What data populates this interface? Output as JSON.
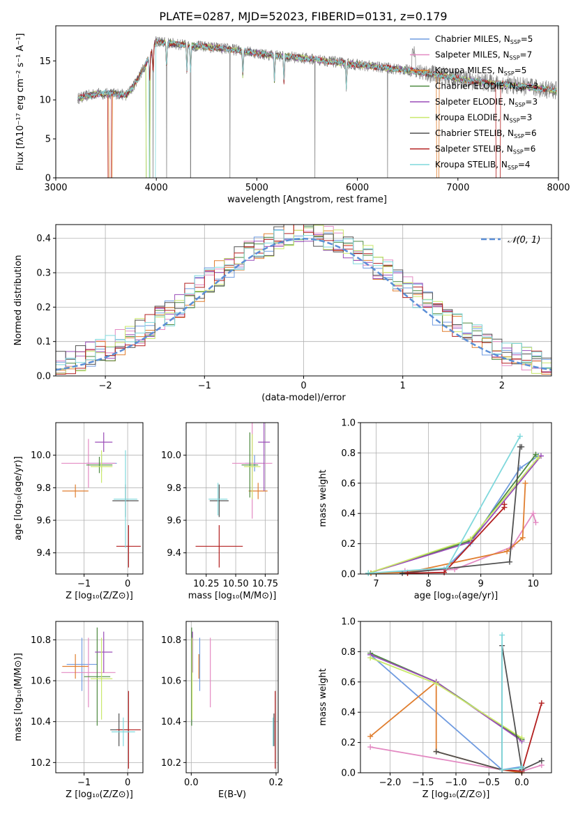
{
  "title": "PLATE=0287, MJD=52023, FIBERID=0131, z=0.179",
  "colors": {
    "chabrier_miles": "#6f9be0",
    "salpeter_miles": "#e389c2",
    "kroupa_miles": "#e07e2f",
    "chabrier_elodie": "#4d8a40",
    "salpeter_elodie": "#9a4cb8",
    "kroupa_elodie": "#c9e86a",
    "chabrier_stelib": "#505050",
    "salpeter_stelib": "#b31f1f",
    "kroupa_stelib": "#7fd8dc",
    "gaussian": "#5b8ed6",
    "observed_spectrum": "#808080",
    "grid": "#b0b0b0"
  },
  "legend_spectrum": [
    {
      "name": "Chabrier MILES, N_SSP=5",
      "text": "Chabrier MILES, N",
      "sub": "SSP",
      "suffix": "=5",
      "color_key": "chabrier_miles"
    },
    {
      "name": "Salpeter MILES, N_SSP=7",
      "text": "Salpeter MILES, N",
      "sub": "SSP",
      "suffix": "=7",
      "color_key": "salpeter_miles"
    },
    {
      "name": "Kroupa MILES, N_SSP=5",
      "text": "Kroupa MILES, N",
      "sub": "SSP",
      "suffix": "=5",
      "color_key": "kroupa_miles"
    },
    {
      "name": "Chabrier ELODIE, N_SSP=3",
      "text": "Chabrier ELODIE, N",
      "sub": "SSP",
      "suffix": "=3",
      "color_key": "chabrier_elodie"
    },
    {
      "name": "Salpeter ELODIE, N_SSP=3",
      "text": "Salpeter ELODIE, N",
      "sub": "SSP",
      "suffix": "=3",
      "color_key": "salpeter_elodie"
    },
    {
      "name": "Kroupa ELODIE, N_SSP=3",
      "text": "Kroupa ELODIE, N",
      "sub": "SSP",
      "suffix": "=3",
      "color_key": "kroupa_elodie"
    },
    {
      "name": "Chabrier STELIB, N_SSP=6",
      "text": "Chabrier STELIB, N",
      "sub": "SSP",
      "suffix": "=6",
      "color_key": "chabrier_stelib"
    },
    {
      "name": "Salpeter STELIB, N_SSP=6",
      "text": "Salpeter STELIB, N",
      "sub": "SSP",
      "suffix": "=6",
      "color_key": "salpeter_stelib"
    },
    {
      "name": "Kroupa STELIB, N_SSP=4",
      "text": "Kroupa STELIB, N",
      "sub": "SSP",
      "suffix": "=4",
      "color_key": "kroupa_stelib"
    }
  ],
  "chart_data": [
    {
      "id": "spectrum",
      "type": "line",
      "xlabel": "wavelength [Angstrom, rest frame]",
      "ylabel": "Flux [fλ10⁻¹⁷ erg cm⁻² s⁻¹ A⁻¹]",
      "xlim": [
        3000,
        8000
      ],
      "ylim": [
        0,
        19.5
      ],
      "xticks": [
        3000,
        4000,
        5000,
        6000,
        7000,
        8000
      ],
      "yticks": [
        0,
        5,
        10,
        15
      ],
      "grid": false,
      "legend": "right",
      "observed_range": [
        3220,
        7980
      ],
      "continuum_shape": {
        "x": [
          3220,
          3400,
          3600,
          3700,
          3760,
          3850,
          3950,
          4000,
          4100,
          4300,
          4500,
          4800,
          5100,
          5500,
          6000,
          6500,
          6800,
          7200,
          7600,
          7980
        ],
        "y": [
          10.2,
          10.8,
          10.8,
          10.6,
          11.5,
          13.5,
          16.0,
          17.5,
          17.3,
          17.0,
          16.8,
          16.4,
          15.8,
          15.3,
          14.5,
          13.8,
          13.2,
          12.3,
          11.8,
          11.2
        ]
      },
      "model_dropouts": [
        {
          "model": "salpeter_stelib",
          "x": [
            3520,
            3550
          ]
        },
        {
          "model": "kroupa_miles",
          "x": [
            3530,
            3560
          ]
        },
        {
          "model": "kroupa_elodie",
          "x": [
            3900,
            3935
          ]
        },
        {
          "model": "chabrier_elodie",
          "x": [
            3900,
            3935
          ]
        },
        {
          "model": "kroupa_stelib",
          "x": [
            3930,
            3990
          ]
        },
        {
          "model": "kroupa_miles",
          "x": [
            6790,
            6810
          ]
        },
        {
          "model": "salpeter_stelib",
          "x": [
            7380,
            7420
          ]
        }
      ]
    },
    {
      "id": "residuals",
      "type": "step",
      "xlabel": "(data-model)/error",
      "ylabel": "Normed distribution",
      "xlim": [
        -2.5,
        2.5
      ],
      "ylim": [
        0,
        0.44
      ],
      "xticks": [
        -2,
        -1,
        0,
        1,
        2
      ],
      "yticks": [
        0.0,
        0.1,
        0.2,
        0.3,
        0.4
      ],
      "grid": true,
      "legend": "top-right",
      "reference_curve": {
        "name": "N(0,1)",
        "label": "𝒩(0, 1)",
        "mean": 0,
        "sigma": 1
      },
      "bin_width": 0.1,
      "bin_range": [
        -2.5,
        2.5
      ]
    },
    {
      "id": "z_vs_age",
      "type": "scatter",
      "xlabel": "Z [log₁₀(Z/Z⊙)]",
      "ylabel": "age  [log₁₀(age/yr)]",
      "xlim": [
        -1.65,
        0.35
      ],
      "ylim": [
        9.27,
        10.2
      ],
      "xticks": [
        -1,
        0
      ],
      "yticks": [
        9.4,
        9.6,
        9.8,
        10.0
      ],
      "grid": true,
      "points": [
        {
          "model": "chabrier_miles",
          "x": -0.6,
          "xerr": 0.35,
          "y": 9.95,
          "yerr": 0.05
        },
        {
          "model": "salpeter_miles",
          "x": -0.9,
          "xerr": 0.62,
          "y": 9.95,
          "yerr": 0.15
        },
        {
          "model": "kroupa_miles",
          "x": -1.2,
          "xerr": 0.3,
          "y": 9.78,
          "yerr": 0.04
        },
        {
          "model": "chabrier_elodie",
          "x": -0.65,
          "xerr": 0.3,
          "y": 9.94,
          "yerr": 0.05
        },
        {
          "model": "salpeter_elodie",
          "x": -0.55,
          "xerr": 0.2,
          "y": 10.08,
          "yerr": 0.06
        },
        {
          "model": "kroupa_elodie",
          "x": -0.6,
          "xerr": 0.25,
          "y": 9.93,
          "yerr": 0.1
        },
        {
          "model": "chabrier_stelib",
          "x": -0.05,
          "xerr": 0.3,
          "y": 9.72,
          "yerr": 0.1
        },
        {
          "model": "salpeter_stelib",
          "x": 0.02,
          "xerr": 0.28,
          "y": 9.44,
          "yerr": 0.13
        },
        {
          "model": "kroupa_stelib",
          "x": -0.05,
          "xerr": 0.27,
          "y": 9.73,
          "yerr": 0.3
        }
      ]
    },
    {
      "id": "mass_vs_age",
      "type": "scatter",
      "xlabel": "mass [log₁₀(M/M⊙)]",
      "ylabel": "",
      "xlim": [
        10.08,
        10.86
      ],
      "ylim": [
        9.27,
        10.2
      ],
      "xticks": [
        10.25,
        10.5,
        10.75
      ],
      "yticks": [
        9.4,
        9.6,
        9.8,
        10.0
      ],
      "grid": true,
      "points": [
        {
          "model": "chabrier_miles",
          "x": 10.66,
          "xerr": 0.08,
          "y": 9.95,
          "yerr": 0.05
        },
        {
          "model": "salpeter_miles",
          "x": 10.64,
          "xerr": 0.17,
          "y": 9.95,
          "yerr": 0.34
        },
        {
          "model": "kroupa_miles",
          "x": 10.69,
          "xerr": 0.08,
          "y": 9.78,
          "yerr": 0.05
        },
        {
          "model": "chabrier_elodie",
          "x": 10.62,
          "xerr": 0.07,
          "y": 9.94,
          "yerr": 0.2
        },
        {
          "model": "salpeter_elodie",
          "x": 10.74,
          "xerr": 0.05,
          "y": 10.08,
          "yerr": 0.3
        },
        {
          "model": "kroupa_elodie",
          "x": 10.64,
          "xerr": 0.07,
          "y": 9.93,
          "yerr": 0.2
        },
        {
          "model": "chabrier_stelib",
          "x": 10.36,
          "xerr": 0.08,
          "y": 9.72,
          "yerr": 0.1
        },
        {
          "model": "salpeter_stelib",
          "x": 10.36,
          "xerr": 0.2,
          "y": 9.44,
          "yerr": 0.13
        },
        {
          "model": "kroupa_stelib",
          "x": 10.35,
          "xerr": 0.08,
          "y": 9.73,
          "yerr": 0.1
        }
      ]
    },
    {
      "id": "age_mass_weight",
      "type": "line",
      "xlabel": "age  [log₁₀(age/yr)]",
      "ylabel": "mass weight",
      "xlim": [
        6.7,
        10.35
      ],
      "ylim": [
        0,
        1.0
      ],
      "xticks": [
        7,
        8,
        9,
        10
      ],
      "yticks": [
        0.0,
        0.2,
        0.4,
        0.6,
        0.8,
        1.0
      ],
      "grid": true,
      "series": [
        {
          "model": "chabrier_miles",
          "x": [
            6.85,
            8.3,
            8.8,
            9.75,
            10.1
          ],
          "y": [
            0.005,
            0.03,
            0.2,
            0.7,
            0.78
          ]
        },
        {
          "model": "salpeter_miles",
          "x": [
            7.55,
            8.5,
            9.6,
            10.0,
            10.05
          ],
          "y": [
            0.02,
            0.03,
            0.18,
            0.4,
            0.34
          ]
        },
        {
          "model": "kroupa_miles",
          "x": [
            6.9,
            7.6,
            9.5,
            9.8,
            9.85
          ],
          "y": [
            0.005,
            0.01,
            0.15,
            0.24,
            0.6
          ]
        },
        {
          "model": "chabrier_elodie",
          "x": [
            6.85,
            8.8,
            10.05
          ],
          "y": [
            0.005,
            0.22,
            0.79
          ]
        },
        {
          "model": "salpeter_elodie",
          "x": [
            6.85,
            8.8,
            10.15
          ],
          "y": [
            0.005,
            0.21,
            0.78
          ]
        },
        {
          "model": "kroupa_elodie",
          "x": [
            6.85,
            8.8,
            10.1
          ],
          "y": [
            0.005,
            0.23,
            0.77
          ]
        },
        {
          "model": "chabrier_stelib",
          "x": [
            7.5,
            9.55,
            9.75,
            9.78
          ],
          "y": [
            0.005,
            0.08,
            0.84,
            0.84
          ]
        },
        {
          "model": "salpeter_stelib",
          "x": [
            7.6,
            8.3,
            9.45,
            9.45
          ],
          "y": [
            0.005,
            0.01,
            0.44,
            0.46
          ]
        },
        {
          "model": "kroupa_stelib",
          "x": [
            6.85,
            8.35,
            9.75
          ],
          "y": [
            0.005,
            0.04,
            0.91
          ]
        }
      ]
    },
    {
      "id": "z_vs_mass",
      "type": "scatter",
      "xlabel": "Z [log₁₀(Z/Z⊙)]",
      "ylabel": "mass [log₁₀(M/M⊙)]",
      "xlim": [
        -1.65,
        0.35
      ],
      "ylim": [
        10.15,
        10.89
      ],
      "xticks": [
        -1,
        0
      ],
      "yticks": [
        10.2,
        10.4,
        10.6,
        10.8
      ],
      "grid": true,
      "points": [
        {
          "model": "chabrier_miles",
          "x": -1.05,
          "xerr": 0.35,
          "y": 10.68,
          "yerr": 0.13
        },
        {
          "model": "salpeter_miles",
          "x": -0.9,
          "xerr": 0.62,
          "y": 10.64,
          "yerr": 0.17
        },
        {
          "model": "kroupa_miles",
          "x": -1.2,
          "xerr": 0.3,
          "y": 10.67,
          "yerr": 0.06
        },
        {
          "model": "chabrier_elodie",
          "x": -0.7,
          "xerr": 0.3,
          "y": 10.62,
          "yerr": 0.24
        },
        {
          "model": "salpeter_elodie",
          "x": -0.55,
          "xerr": 0.2,
          "y": 10.74,
          "yerr": 0.1
        },
        {
          "model": "kroupa_elodie",
          "x": -0.6,
          "xerr": 0.25,
          "y": 10.61,
          "yerr": 0.2
        },
        {
          "model": "chabrier_stelib",
          "x": -0.2,
          "xerr": 0.2,
          "y": 10.36,
          "yerr": 0.08
        },
        {
          "model": "salpeter_stelib",
          "x": 0.02,
          "xerr": 0.28,
          "y": 10.36,
          "yerr": 0.19
        },
        {
          "model": "kroupa_stelib",
          "x": -0.1,
          "xerr": 0.27,
          "y": 10.35,
          "yerr": 0.07
        }
      ]
    },
    {
      "id": "ebv_vs_mass",
      "type": "scatter",
      "xlabel": "E(B-V)",
      "ylabel": "",
      "xlim": [
        -0.012,
        0.205
      ],
      "ylim": [
        10.15,
        10.89
      ],
      "xticks": [
        0.0,
        0.2
      ],
      "yticks": [
        10.2,
        10.4,
        10.6,
        10.8
      ],
      "grid": true,
      "points": [
        {
          "model": "chabrier_miles",
          "x": 0.02,
          "xerr": 0,
          "y": 10.68,
          "yerr": 0.13
        },
        {
          "model": "salpeter_miles",
          "x": 0.045,
          "xerr": 0,
          "y": 10.64,
          "yerr": 0.17
        },
        {
          "model": "kroupa_miles",
          "x": 0.018,
          "xerr": 0,
          "y": 10.67,
          "yerr": 0.06
        },
        {
          "model": "chabrier_elodie",
          "x": 0.001,
          "xerr": 0,
          "y": 10.62,
          "yerr": 0.24
        },
        {
          "model": "salpeter_elodie",
          "x": 0.003,
          "xerr": 0,
          "y": 10.74,
          "yerr": 0.1
        },
        {
          "model": "kroupa_elodie",
          "x": 0.002,
          "xerr": 0,
          "y": 10.61,
          "yerr": 0.2
        },
        {
          "model": "chabrier_stelib",
          "x": 0.195,
          "xerr": 0,
          "y": 10.36,
          "yerr": 0.08
        },
        {
          "model": "salpeter_stelib",
          "x": 0.198,
          "xerr": 0,
          "y": 10.36,
          "yerr": 0.19
        },
        {
          "model": "kroupa_stelib",
          "x": 0.193,
          "xerr": 0,
          "y": 10.35,
          "yerr": 0.07
        }
      ]
    },
    {
      "id": "z_mass_weight",
      "type": "line",
      "xlabel": "Z [log₁₀(Z/Z⊙)]",
      "ylabel": "mass weight",
      "xlim": [
        -2.45,
        0.45
      ],
      "ylim": [
        0,
        1.0
      ],
      "xticks": [
        -2.0,
        -1.5,
        -1.0,
        -0.5,
        0.0
      ],
      "yticks": [
        0.0,
        0.2,
        0.4,
        0.6,
        0.8,
        1.0
      ],
      "grid": true,
      "series": [
        {
          "model": "chabrier_miles",
          "x": [
            -2.3,
            -0.3,
            0.0
          ],
          "y": [
            0.78,
            0.02,
            0.04
          ]
        },
        {
          "model": "salpeter_miles",
          "x": [
            -2.3,
            -0.3,
            0.0,
            0.3
          ],
          "y": [
            0.17,
            0.02,
            0.01,
            0.05
          ]
        },
        {
          "model": "kroupa_miles",
          "x": [
            -2.3,
            -1.3,
            -1.3,
            -0.3,
            0.0
          ],
          "y": [
            0.24,
            0.6,
            0.14,
            0.02,
            0.0
          ]
        },
        {
          "model": "chabrier_elodie",
          "x": [
            -2.3,
            -1.3,
            0.0
          ],
          "y": [
            0.79,
            0.6,
            0.22
          ]
        },
        {
          "model": "salpeter_elodie",
          "x": [
            -2.3,
            -1.3,
            0.0
          ],
          "y": [
            0.78,
            0.6,
            0.21
          ]
        },
        {
          "model": "kroupa_elodie",
          "x": [
            -2.3,
            -1.3,
            0.0
          ],
          "y": [
            0.76,
            0.59,
            0.23
          ]
        },
        {
          "model": "chabrier_stelib",
          "x": [
            -1.3,
            -0.3,
            -0.3,
            0.0,
            0.3
          ],
          "y": [
            0.14,
            0.02,
            0.84,
            0.02,
            0.08
          ]
        },
        {
          "model": "salpeter_stelib",
          "x": [
            -0.3,
            0.0,
            0.3
          ],
          "y": [
            0.02,
            0.01,
            0.46
          ]
        },
        {
          "model": "kroupa_stelib",
          "x": [
            -0.3,
            -0.3,
            0.0,
            0.0
          ],
          "y": [
            0.91,
            0.02,
            0.03,
            0.04
          ]
        }
      ]
    }
  ]
}
